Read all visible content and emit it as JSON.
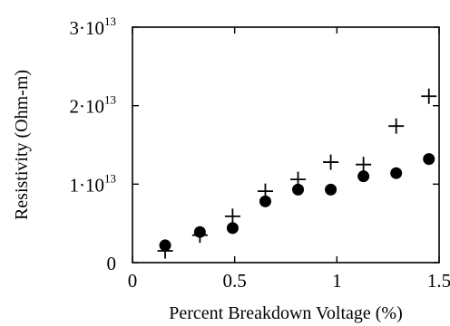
{
  "chart_data": {
    "type": "scatter",
    "title": "",
    "xlabel": "Percent Breakdown Voltage (%)",
    "ylabel": "Resistivity (Ohm-m)",
    "xlim": [
      0,
      1.5
    ],
    "ylim": [
      0,
      30000000000000.0
    ],
    "grid": false,
    "legend": "none",
    "x_ticks": [
      {
        "value": 0,
        "label": "0"
      },
      {
        "value": 0.5,
        "label": "0.5"
      },
      {
        "value": 1,
        "label": "1"
      },
      {
        "value": 1.5,
        "label": "1.5"
      }
    ],
    "y_ticks": [
      {
        "value": 0,
        "base": "0",
        "exp": ""
      },
      {
        "value": 10000000000000.0,
        "base": "1·10",
        "exp": "13"
      },
      {
        "value": 20000000000000.0,
        "base": "2·10",
        "exp": "13"
      },
      {
        "value": 30000000000000.0,
        "base": "3·10",
        "exp": "13"
      }
    ],
    "series": [
      {
        "marker": "circle",
        "x": [
          0.16,
          0.33,
          0.49,
          0.65,
          0.81,
          0.97,
          1.13,
          1.29,
          1.45
        ],
        "y": [
          2200000000000.0,
          3900000000000.0,
          4400000000000.0,
          7800000000000.0,
          9300000000000.0,
          9300000000000.0,
          11000000000000.0,
          11400000000000.0,
          13200000000000.0
        ]
      },
      {
        "marker": "plus",
        "x": [
          0.16,
          0.33,
          0.49,
          0.65,
          0.81,
          0.97,
          1.13,
          1.29,
          1.45
        ],
        "y": [
          1500000000000.0,
          3500000000000.0,
          5900000000000.0,
          9100000000000.0,
          10600000000000.0,
          12800000000000.0,
          12500000000000.0,
          17400000000000.0,
          21200000000000.0
        ]
      }
    ]
  }
}
